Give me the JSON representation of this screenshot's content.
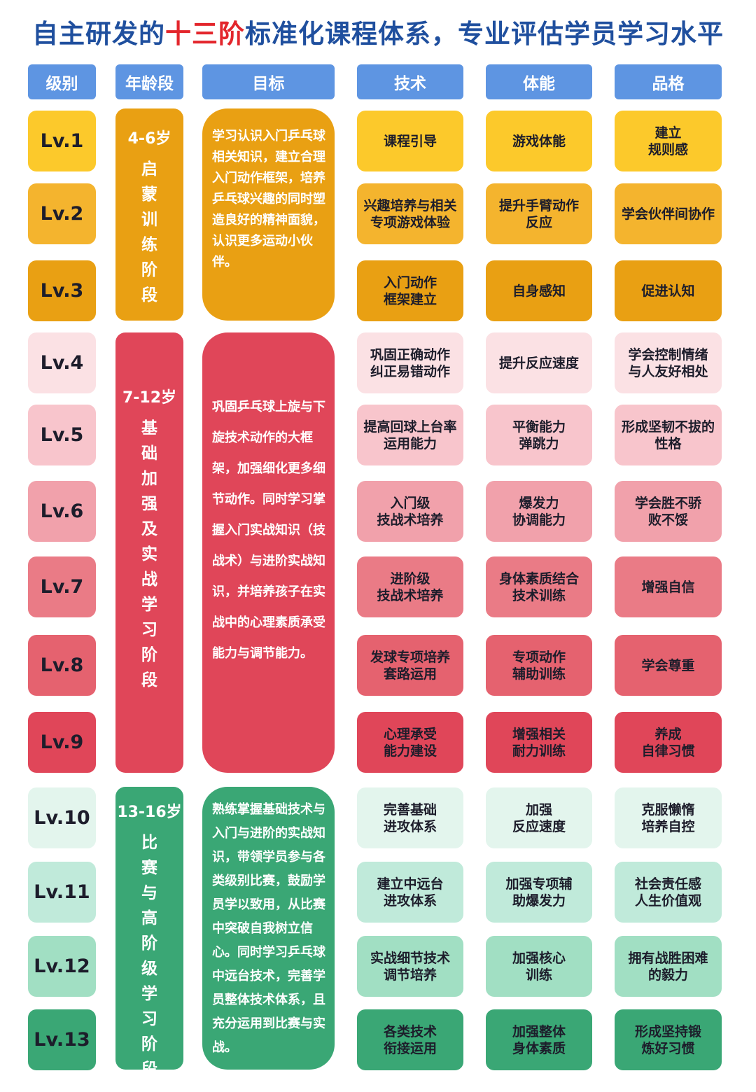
{
  "header": {
    "title_parts": [
      "自主研发的",
      "十三阶",
      "标准化课程体系，专业评估学员学习水平"
    ]
  },
  "table": {
    "columns": [
      "级别",
      "年龄段",
      "目标",
      "技术",
      "体能",
      "品格"
    ],
    "stages": [
      {
        "age": "4-6岁",
        "name": "启蒙训练阶段",
        "goal": "学习认识入门乒乓球相关知识，建立合理入门动作框架，培养乒乓球兴趣的同时塑造良好的精神面貌，认识更多运动小伙伴。"
      },
      {
        "age": "7-12岁",
        "name": "基础加强及实战学习阶段",
        "goal": "巩固乒乓球上旋与下旋技术动作的大框架，加强细化更多细节动作。同时学习掌握入门实战知识（技战术）与进阶实战知识，并培养孩子在实战中的心理素质承受能力与调节能力。"
      },
      {
        "age": "13-16岁",
        "name": "比赛与高阶级学习阶段",
        "goal": "熟练掌握基础技术与入门与进阶的实战知识，带领学员参与各类级别比赛，鼓励学员学以致用，从比赛中突破自我树立信心。同时学习乒乓球中远台技术，完善学员整体技术体系，且充分运用到比赛与实战。"
      }
    ],
    "rows": [
      [
        "Lv.1",
        "课程引导",
        "游戏体能",
        "建立\n规则感"
      ],
      [
        "Lv.2",
        "兴趣培养与相关\n专项游戏体验",
        "提升手臂动作\n反应",
        "学会伙伴间协作"
      ],
      [
        "Lv.3",
        "入门动作\n框架建立",
        "自身感知",
        "促进认知"
      ],
      [
        "Lv.4",
        "巩固正确动作\n纠正易错动作",
        "提升反应速度",
        "学会控制情绪\n与人友好相处"
      ],
      [
        "Lv.5",
        "提高回球上台率\n运用能力",
        "平衡能力\n弹跳力",
        "形成坚韧不拔的\n性格"
      ],
      [
        "Lv.6",
        "入门级\n技战术培养",
        "爆发力\n协调能力",
        "学会胜不骄\n败不馁"
      ],
      [
        "Lv.7",
        "进阶级\n技战术培养",
        "身体素质结合\n技术训练",
        "增强自信"
      ],
      [
        "Lv.8",
        "发球专项培养\n套路运用",
        "专项动作\n辅助训练",
        "学会尊重"
      ],
      [
        "Lv.9",
        "心理承受\n能力建设",
        "增强相关\n耐力训练",
        "养成\n自律习惯"
      ],
      [
        "Lv.10",
        "完善基础\n进攻体系",
        "加强\n反应速度",
        "克服懒惰\n培养自控"
      ],
      [
        "Lv.11",
        "建立中远台\n进攻体系",
        "加强专项辅\n助爆发力",
        "社会责任感\n人生价值观"
      ],
      [
        "Lv.12",
        "实战细节技术\n调节培养",
        "加强核心\n训练",
        "拥有战胜困难\n的毅力"
      ],
      [
        "Lv.13",
        "各类技术\n衔接运用",
        "加强整体\n身体素质",
        "形成坚持锻\n炼好习惯"
      ]
    ]
  }
}
